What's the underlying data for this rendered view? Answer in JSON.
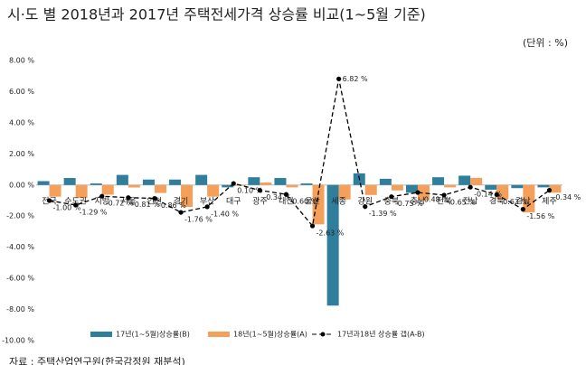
{
  "chart_data": {
    "type": "bar",
    "title": "시·도 별 2018년과 2017년 주택전세가격 상승률 비교(1~5월 기준)",
    "unit_note": "(단위 : %)",
    "source": "자료 : 주택산업연구원(한국감정원 재분석)",
    "categories": [
      "전국",
      "수도권",
      "지방",
      "서울",
      "인천",
      "경기",
      "부산",
      "대구",
      "광주",
      "대전",
      "울산",
      "세종",
      "강원",
      "충북",
      "충남",
      "전북",
      "전남",
      "경북",
      "경남",
      "제주"
    ],
    "series": [
      {
        "name": "17년(1~5월)상승률(B)",
        "type": "bar",
        "color": "#2f7f9c",
        "values": [
          0.25,
          0.45,
          0.1,
          0.65,
          0.35,
          0.35,
          0.65,
          -0.15,
          0.5,
          0.45,
          0.1,
          -7.75,
          0.75,
          0.4,
          -0.5,
          0.5,
          0.6,
          -0.3,
          -0.2,
          -0.15
        ]
      },
      {
        "name": "18년(1~5월)상승률(A)",
        "type": "bar",
        "color": "#f4a05a",
        "values": [
          -0.75,
          -0.84,
          -0.62,
          -0.16,
          -0.51,
          -1.41,
          -0.75,
          -0.05,
          0.16,
          -0.15,
          -2.53,
          -0.93,
          -0.64,
          -0.35,
          -0.98,
          -0.15,
          0.46,
          -0.92,
          -1.76,
          -0.49
        ]
      },
      {
        "name": "17년과18년 상승률 갭(A-B)",
        "type": "line",
        "color": "#000000",
        "values": [
          -1.0,
          -1.29,
          -0.72,
          -0.81,
          -0.86,
          -1.76,
          -1.4,
          0.1,
          -0.34,
          -0.6,
          -2.63,
          6.82,
          -1.39,
          -0.75,
          -0.48,
          -0.65,
          -0.14,
          -0.62,
          -1.56,
          -0.34
        ],
        "value_labels": [
          "-1.00 %",
          "-1.29 %",
          "-0.72 %",
          "-0.81 %",
          "-0.86 %",
          "-1.76 %",
          "-1.40 %",
          "0.10 %",
          "-0.34 %",
          "-0.60 %",
          "-2.63 %",
          "6.82 %",
          "-1.39 %",
          "-0.75 %",
          "-0.48 %",
          "-0.65 %",
          "-0.14 %",
          "-0.62 %",
          "-1.56 %",
          "-0.34 %"
        ]
      }
    ],
    "ylim": [
      -10,
      8
    ],
    "yticks": [
      {
        "value": -10,
        "label": "-10.00 %"
      },
      {
        "value": -8,
        "label": "-8.00 %"
      },
      {
        "value": -6,
        "label": "-6.00 %"
      },
      {
        "value": -4,
        "label": "-4.00 %"
      },
      {
        "value": -2,
        "label": "-2.00 %"
      },
      {
        "value": 0,
        "label": "0.00 %"
      },
      {
        "value": 2,
        "label": "2.00 %"
      },
      {
        "value": 4,
        "label": "4.00 %"
      },
      {
        "value": 6,
        "label": "6.00 %"
      },
      {
        "value": 8,
        "label": "8.00 %"
      }
    ],
    "grid": false
  }
}
